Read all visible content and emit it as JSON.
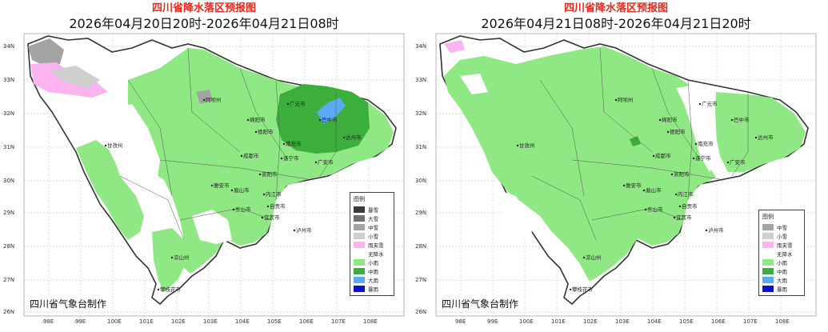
{
  "panels": [
    {
      "title": "四川省降水落区预报图",
      "subtitle": "2026年04月20日20时-2026年04月21日08时",
      "credit": "四川省气象台制作",
      "legend": {
        "title": "图例",
        "items": [
          {
            "label": "暴雪",
            "color": "#3a3a3a"
          },
          {
            "label": "大雪",
            "color": "#707070"
          },
          {
            "label": "中雪",
            "color": "#a3a3a3"
          },
          {
            "label": "小雪",
            "color": "#cfcfcf"
          },
          {
            "label": "雨夹雪",
            "color": "#fbb4ef"
          },
          {
            "label": "无降水",
            "color": "none"
          },
          {
            "label": "小雨",
            "color": "#8fe884"
          },
          {
            "label": "中雨",
            "color": "#3cae3c"
          },
          {
            "label": "大雨",
            "color": "#5aa9f2"
          },
          {
            "label": "暴雨",
            "color": "#1010c8"
          }
        ]
      },
      "cities": [
        "阿坝州",
        "绵阳市",
        "广元市",
        "巴中市",
        "南充市",
        "达州市",
        "德阳市",
        "成都市",
        "遂宁市",
        "广安市",
        "资阳市",
        "眉山市",
        "雅安市",
        "内江市",
        "乐山市",
        "自贡市",
        "宜宾市",
        "泸州市",
        "甘孜州",
        "凉山州",
        "攀枝花市"
      ]
    },
    {
      "title": "四川省降水落区预报图",
      "subtitle": "2026年04月21日08时-2026年04月21日20时",
      "credit": "四川省气象台制作",
      "legend": {
        "title": "图例",
        "items": [
          {
            "label": "中雪",
            "color": "#a3a3a3"
          },
          {
            "label": "小雪",
            "color": "#cfcfcf"
          },
          {
            "label": "雨夹雪",
            "color": "#fbb4ef"
          },
          {
            "label": "无降水",
            "color": "none"
          },
          {
            "label": "小雨",
            "color": "#8fe884"
          },
          {
            "label": "中雨",
            "color": "#3cae3c"
          },
          {
            "label": "大雨",
            "color": "#5aa9f2"
          },
          {
            "label": "暴雨",
            "color": "#1010c8"
          }
        ]
      },
      "cities": [
        "阿坝州",
        "绵阳市",
        "广元市",
        "巴中市",
        "南充市",
        "达州市",
        "德阳市",
        "成都市",
        "遂宁市",
        "广安市",
        "资阳市",
        "眉山市",
        "雅安市",
        "内江市",
        "乐山市",
        "自贡市",
        "宜宾市",
        "泸州市",
        "甘孜州",
        "凉山州",
        "攀枝花市"
      ]
    }
  ],
  "lat_labels": [
    "34N",
    "33N",
    "32N",
    "31N",
    "30N",
    "29N",
    "28N",
    "27N",
    "26N"
  ],
  "lon_labels": [
    "98E",
    "99E",
    "100E",
    "101E",
    "102E",
    "103E",
    "104E",
    "105E",
    "106E",
    "107E",
    "108E"
  ],
  "colors": {
    "light_rain": "#8fe884",
    "moderate_rain": "#3cae3c",
    "heavy_rain": "#5aa9f2",
    "sleet": "#fbb4ef",
    "light_snow": "#cfcfcf",
    "moderate_snow": "#a3a3a3",
    "title_red": "#e8271c"
  }
}
